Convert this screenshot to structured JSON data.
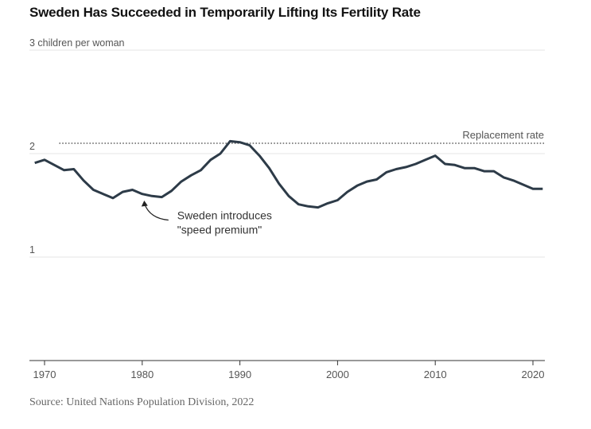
{
  "chart_data": {
    "type": "line",
    "title": "Sweden Has Succeeded in Temporarily Lifting Its Fertility Rate",
    "ylabel": "children per woman",
    "source": "Source: United Nations Population Division, 2022",
    "ylim": [
      0.0,
      3.0
    ],
    "xlim": [
      1969,
      2021
    ],
    "x_ticks": [
      1970,
      1980,
      1990,
      2000,
      2010,
      2020
    ],
    "y_ticks": [
      {
        "value": 3,
        "label": "3",
        "suffix": " children per woman"
      },
      {
        "value": 2,
        "label": "2",
        "suffix": ""
      },
      {
        "value": 1,
        "label": "1",
        "suffix": ""
      }
    ],
    "reference_line": {
      "label": "Replacement rate",
      "value": 2.1,
      "x_start": 1971.5,
      "x_end": 2021
    },
    "annotation": {
      "lines": [
        "Sweden introduces",
        "\"speed premium\""
      ],
      "x": 1980,
      "y": 1.55
    },
    "series": [
      {
        "color": "#2d3b48",
        "x": [
          1969,
          1970,
          1971,
          1972,
          1973,
          1974,
          1975,
          1976,
          1977,
          1978,
          1979,
          1980,
          1981,
          1982,
          1983,
          1984,
          1985,
          1986,
          1987,
          1988,
          1989,
          1990,
          1991,
          1992,
          1993,
          1994,
          1995,
          1996,
          1997,
          1998,
          1999,
          2000,
          2001,
          2002,
          2003,
          2004,
          2005,
          2006,
          2007,
          2008,
          2009,
          2010,
          2011,
          2012,
          2013,
          2014,
          2015,
          2016,
          2017,
          2018,
          2019,
          2020,
          2021
        ],
        "y": [
          1.91,
          1.94,
          1.89,
          1.84,
          1.85,
          1.74,
          1.65,
          1.61,
          1.57,
          1.63,
          1.65,
          1.61,
          1.59,
          1.58,
          1.64,
          1.73,
          1.79,
          1.84,
          1.94,
          2.0,
          2.12,
          2.11,
          2.08,
          1.98,
          1.86,
          1.71,
          1.59,
          1.51,
          1.49,
          1.48,
          1.52,
          1.55,
          1.63,
          1.69,
          1.73,
          1.75,
          1.82,
          1.85,
          1.87,
          1.9,
          1.94,
          1.98,
          1.9,
          1.89,
          1.86,
          1.86,
          1.83,
          1.83,
          1.77,
          1.74,
          1.7,
          1.66,
          1.66
        ]
      }
    ]
  }
}
